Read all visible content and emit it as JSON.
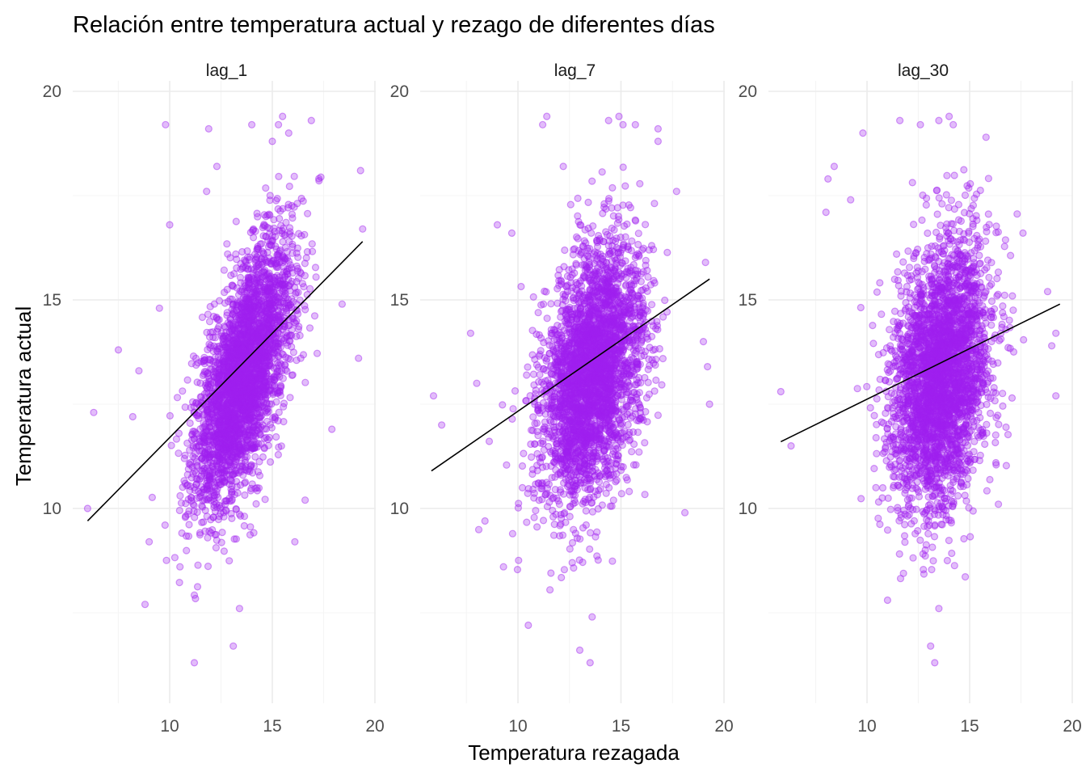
{
  "chart_data": {
    "type": "scatter",
    "title": "Relación entre temperatura actual y rezago de diferentes días",
    "xlabel": "Temperatura rezagada",
    "ylabel": "Temperatura actual",
    "point_color": "#a020f0",
    "line_color": "#000000",
    "grid": true,
    "legend": "none",
    "ylim": [
      5.5,
      20.5
    ],
    "y_ticks": [
      "10",
      "15",
      "20"
    ],
    "facets": [
      {
        "name": "lag_1",
        "xlim": [
          5.0,
          20.0
        ],
        "x_ticks": [
          "10",
          "15",
          "20"
        ],
        "fit_line": {
          "x": [
            6.0,
            19.4
          ],
          "y": [
            9.7,
            16.4
          ]
        },
        "cloud": {
          "cx": 13.6,
          "cy": 13.2,
          "sx": 1.2,
          "sy": 1.55,
          "rho": 0.62
        },
        "outliers": [
          {
            "x": 6.0,
            "y": 10.0
          },
          {
            "x": 6.3,
            "y": 12.3
          },
          {
            "x": 7.5,
            "y": 13.8
          },
          {
            "x": 8.2,
            "y": 12.2
          },
          {
            "x": 8.5,
            "y": 13.3
          },
          {
            "x": 8.8,
            "y": 7.7
          },
          {
            "x": 9.0,
            "y": 9.2
          },
          {
            "x": 9.5,
            "y": 14.8
          },
          {
            "x": 9.8,
            "y": 19.2
          },
          {
            "x": 10.0,
            "y": 16.8
          },
          {
            "x": 10.5,
            "y": 8.6
          },
          {
            "x": 11.2,
            "y": 6.3
          },
          {
            "x": 11.8,
            "y": 17.6
          },
          {
            "x": 11.9,
            "y": 19.1
          },
          {
            "x": 12.3,
            "y": 18.2
          },
          {
            "x": 13.1,
            "y": 6.7
          },
          {
            "x": 13.4,
            "y": 7.6
          },
          {
            "x": 14.0,
            "y": 19.2
          },
          {
            "x": 15.0,
            "y": 18.8
          },
          {
            "x": 15.3,
            "y": 19.2
          },
          {
            "x": 15.5,
            "y": 19.4
          },
          {
            "x": 15.8,
            "y": 19.0
          },
          {
            "x": 16.1,
            "y": 9.2
          },
          {
            "x": 16.6,
            "y": 10.2
          },
          {
            "x": 16.9,
            "y": 19.3
          },
          {
            "x": 17.9,
            "y": 11.9
          },
          {
            "x": 18.4,
            "y": 14.9
          },
          {
            "x": 19.3,
            "y": 18.1
          },
          {
            "x": 19.4,
            "y": 16.7
          },
          {
            "x": 19.2,
            "y": 13.6
          }
        ]
      },
      {
        "name": "lag_7",
        "xlim": [
          5.0,
          20.0
        ],
        "x_ticks": [
          "10",
          "15",
          "20"
        ],
        "fit_line": {
          "x": [
            5.8,
            19.3
          ],
          "y": [
            10.9,
            15.5
          ]
        },
        "cloud": {
          "cx": 13.6,
          "cy": 13.2,
          "sx": 1.25,
          "sy": 1.55,
          "rho": 0.35
        },
        "outliers": [
          {
            "x": 5.9,
            "y": 12.7
          },
          {
            "x": 6.3,
            "y": 12.0
          },
          {
            "x": 7.7,
            "y": 14.2
          },
          {
            "x": 8.0,
            "y": 13.0
          },
          {
            "x": 8.4,
            "y": 9.7
          },
          {
            "x": 9.0,
            "y": 16.8
          },
          {
            "x": 9.3,
            "y": 8.6
          },
          {
            "x": 9.7,
            "y": 16.6
          },
          {
            "x": 10.5,
            "y": 7.2
          },
          {
            "x": 11.2,
            "y": 19.2
          },
          {
            "x": 11.4,
            "y": 19.4
          },
          {
            "x": 12.2,
            "y": 18.2
          },
          {
            "x": 13.0,
            "y": 6.6
          },
          {
            "x": 13.5,
            "y": 6.3
          },
          {
            "x": 13.6,
            "y": 7.4
          },
          {
            "x": 14.4,
            "y": 19.3
          },
          {
            "x": 14.9,
            "y": 19.4
          },
          {
            "x": 15.1,
            "y": 19.2
          },
          {
            "x": 15.7,
            "y": 19.2
          },
          {
            "x": 16.8,
            "y": 19.1
          },
          {
            "x": 16.8,
            "y": 18.8
          },
          {
            "x": 17.7,
            "y": 17.6
          },
          {
            "x": 18.1,
            "y": 9.9
          },
          {
            "x": 19.1,
            "y": 15.9
          },
          {
            "x": 19.2,
            "y": 13.4
          },
          {
            "x": 19.3,
            "y": 12.5
          },
          {
            "x": 19.0,
            "y": 14.0
          }
        ]
      },
      {
        "name": "lag_30",
        "xlim": [
          5.0,
          20.0
        ],
        "x_ticks": [
          "10",
          "15",
          "20"
        ],
        "fit_line": {
          "x": [
            5.8,
            19.4
          ],
          "y": [
            11.6,
            14.9
          ]
        },
        "cloud": {
          "cx": 13.6,
          "cy": 13.2,
          "sx": 1.2,
          "sy": 1.6,
          "rho": 0.22
        },
        "outliers": [
          {
            "x": 5.8,
            "y": 12.8
          },
          {
            "x": 6.3,
            "y": 11.5
          },
          {
            "x": 8.0,
            "y": 17.1
          },
          {
            "x": 8.1,
            "y": 17.9
          },
          {
            "x": 8.4,
            "y": 18.2
          },
          {
            "x": 9.2,
            "y": 17.4
          },
          {
            "x": 9.8,
            "y": 19.0
          },
          {
            "x": 11.0,
            "y": 7.8
          },
          {
            "x": 11.6,
            "y": 19.3
          },
          {
            "x": 12.6,
            "y": 19.2
          },
          {
            "x": 13.1,
            "y": 6.7
          },
          {
            "x": 13.3,
            "y": 6.3
          },
          {
            "x": 13.5,
            "y": 7.6
          },
          {
            "x": 13.5,
            "y": 19.3
          },
          {
            "x": 14.0,
            "y": 19.4
          },
          {
            "x": 14.2,
            "y": 19.2
          },
          {
            "x": 15.8,
            "y": 18.9
          },
          {
            "x": 16.4,
            "y": 10.1
          },
          {
            "x": 17.6,
            "y": 16.6
          },
          {
            "x": 18.8,
            "y": 15.2
          },
          {
            "x": 19.0,
            "y": 13.9
          },
          {
            "x": 19.2,
            "y": 12.7
          },
          {
            "x": 19.2,
            "y": 14.2
          }
        ]
      }
    ]
  }
}
